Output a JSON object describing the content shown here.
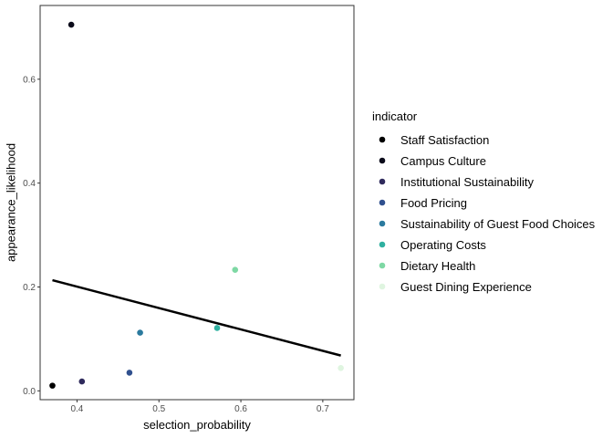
{
  "chart_data": {
    "type": "scatter",
    "xlabel": "selection_probability",
    "ylabel": "appearance_likelihood",
    "xlim": [
      0.355,
      0.738
    ],
    "ylim": [
      -0.017,
      0.742
    ],
    "x_ticks": [
      0.4,
      0.5,
      0.6,
      0.7
    ],
    "x_tick_labels": [
      "0.4",
      "0.5",
      "0.6",
      "0.7"
    ],
    "y_ticks": [
      0.0,
      0.2,
      0.4,
      0.6
    ],
    "y_tick_labels": [
      "0.0",
      "0.2",
      "0.4",
      "0.6"
    ],
    "grid": false,
    "legend_title": "indicator",
    "legend_position": "right",
    "series": [
      {
        "name": "Staff Satisfaction",
        "color": "#000000",
        "x": 0.37,
        "y": 0.01
      },
      {
        "name": "Campus Culture",
        "color": "#0b0b1a",
        "x": 0.393,
        "y": 0.705
      },
      {
        "name": "Institutional Sustainability",
        "color": "#2f2a5c",
        "x": 0.406,
        "y": 0.018
      },
      {
        "name": "Food Pricing",
        "color": "#30508e",
        "x": 0.464,
        "y": 0.035
      },
      {
        "name": "Sustainability of Guest Food Choices",
        "color": "#2b7a9e",
        "x": 0.477,
        "y": 0.112
      },
      {
        "name": "Operating Costs",
        "color": "#2fb0a0",
        "x": 0.571,
        "y": 0.121
      },
      {
        "name": "Dietary Health",
        "color": "#7ed8a4",
        "x": 0.593,
        "y": 0.233
      },
      {
        "name": "Guest Dining Experience",
        "color": "#dff5e0",
        "x": 0.722,
        "y": 0.044
      }
    ],
    "trend_line": {
      "x": [
        0.37,
        0.722
      ],
      "y": [
        0.213,
        0.068
      ],
      "color": "#000000"
    }
  }
}
